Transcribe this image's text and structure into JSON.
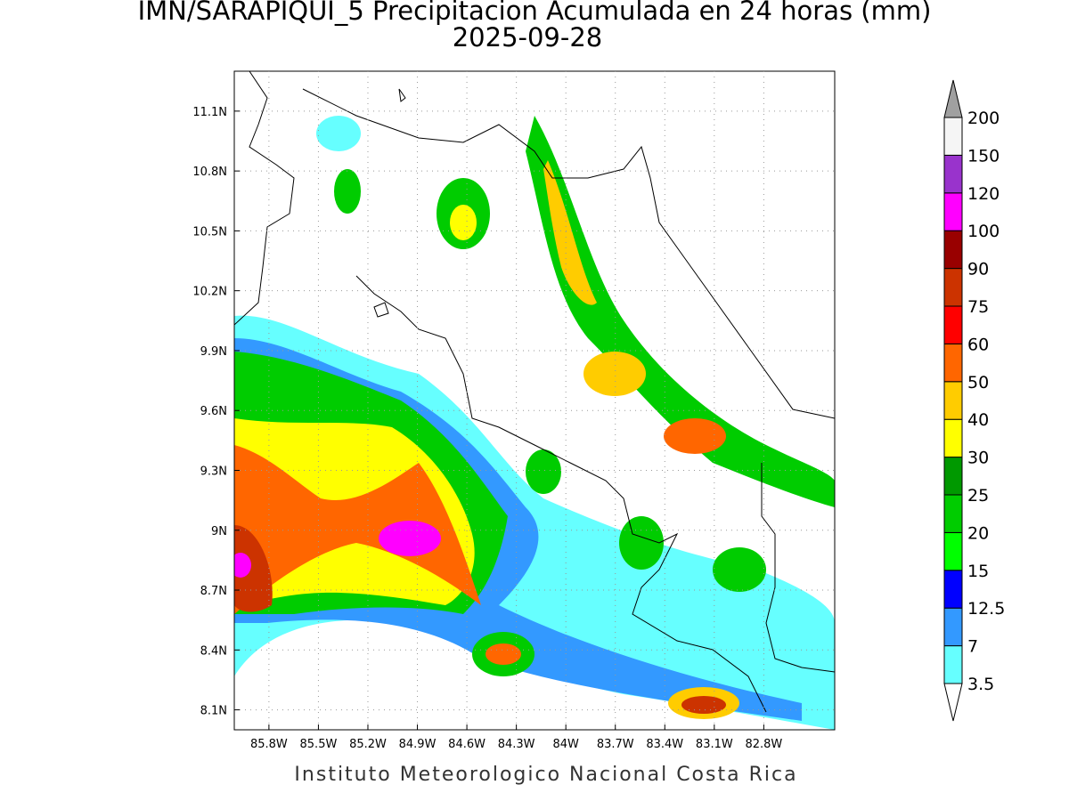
{
  "title": "IMN/SARAPIQUI_5 Precipitacion Acumulada en 24 horas (mm)",
  "subtitle": "2025-09-28",
  "footer": "Instituto Meteorologico Nacional Costa Rica",
  "map": {
    "xlim": [
      -86.01,
      -82.37
    ],
    "ylim": [
      8.0,
      11.3
    ],
    "grid": true,
    "xticks": [
      {
        "value": -85.8,
        "label": "85.8W"
      },
      {
        "value": -85.5,
        "label": "85.5W"
      },
      {
        "value": -85.2,
        "label": "85.2W"
      },
      {
        "value": -84.9,
        "label": "84.9W"
      },
      {
        "value": -84.6,
        "label": "84.6W"
      },
      {
        "value": -84.3,
        "label": "84.3W"
      },
      {
        "value": -84.0,
        "label": "84W"
      },
      {
        "value": -83.7,
        "label": "83.7W"
      },
      {
        "value": -83.4,
        "label": "83.4W"
      },
      {
        "value": -83.1,
        "label": "83.1W"
      },
      {
        "value": -82.8,
        "label": "82.8W"
      }
    ],
    "yticks": [
      {
        "value": 8.1,
        "label": "8.1N"
      },
      {
        "value": 8.4,
        "label": "8.4N"
      },
      {
        "value": 8.7,
        "label": "8.7N"
      },
      {
        "value": 9.0,
        "label": "9N"
      },
      {
        "value": 9.3,
        "label": "9.3N"
      },
      {
        "value": 9.6,
        "label": "9.6N"
      },
      {
        "value": 9.9,
        "label": "9.9N"
      },
      {
        "value": 10.2,
        "label": "10.2N"
      },
      {
        "value": 10.5,
        "label": "10.5N"
      },
      {
        "value": 10.8,
        "label": "10.8N"
      },
      {
        "value": 11.1,
        "label": "11.1N"
      }
    ]
  },
  "colorbar": {
    "levels": [
      3.5,
      7,
      12.5,
      15,
      20,
      25,
      30,
      40,
      50,
      60,
      75,
      90,
      100,
      120,
      150,
      200
    ],
    "colors": [
      "#66ffff",
      "#3399ff",
      "#0000ff",
      "#00ff00",
      "#00cc00",
      "#009900",
      "#ffff00",
      "#ffcc00",
      "#ff6600",
      "#ff0000",
      "#cc3300",
      "#990000",
      "#ff00ff",
      "#9933cc",
      "#f5f5f5"
    ],
    "over_color": "#a0a0a0",
    "under_color": "#ffffff"
  }
}
